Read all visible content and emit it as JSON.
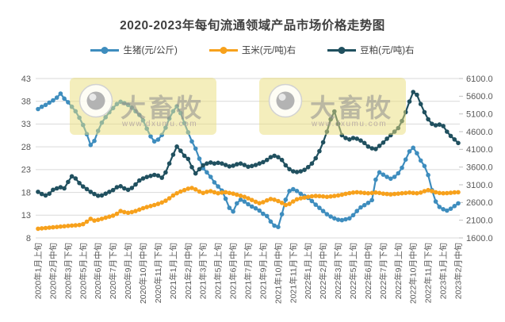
{
  "title": "2020-2023年每旬流通领域产品市场价格走势图",
  "watermark": {
    "brand": "大畜牧",
    "url": "www.dxumu.com"
  },
  "chart_data": {
    "type": "line",
    "title": "2020-2023年每旬流通领域产品市场价格走势图",
    "grid": "horizontal",
    "legend_position": "top",
    "n_points": 113,
    "label_every_n_points": 4,
    "x_tick_labels": [
      "2020年1月上旬",
      "2020年2月中旬",
      "2020年3月下旬",
      "2020年5月上旬",
      "2020年6月中旬",
      "2020年7月下旬",
      "2020年9月上旬",
      "2020年10月中旬",
      "2020年11月下旬",
      "2021年1月上旬",
      "2021年2月中旬",
      "2021年3月下旬",
      "2021年5月上旬",
      "2021年6月中旬",
      "2021年7月下旬",
      "2021年9月上旬",
      "2021年10月中旬",
      "2021年11月下旬",
      "2022年1月上旬",
      "2022年2月中旬",
      "2022年3月下旬",
      "2022年5月上旬",
      "2022年6月中旬",
      "2022年7月下旬",
      "2022年9月上旬",
      "2022年10月中旬",
      "2022年11月下旬",
      "2023年1月上旬",
      "2023年2月中旬"
    ],
    "left_axis": {
      "min": 8,
      "max": 43,
      "step": 5,
      "tick_labels": [
        "8",
        "13",
        "18",
        "23",
        "28",
        "33",
        "38",
        "43"
      ]
    },
    "right_axis": {
      "min": 1600,
      "max": 6100,
      "step": 500,
      "decimals": 1,
      "tick_labels": [
        "1600.0",
        "2100.0",
        "2600.0",
        "3100.0",
        "3600.0",
        "4100.0",
        "4600.0",
        "5100.0",
        "5600.0",
        "6100.0"
      ]
    },
    "series": [
      {
        "key": "shengzhu-pig",
        "name": "生猪(元/公斤)",
        "axis": "left",
        "color": "#3E8DBE",
        "values": [
          36.3,
          36.8,
          37.2,
          37.7,
          38.2,
          38.8,
          39.7,
          38.6,
          37.8,
          36.8,
          35.8,
          34.4,
          32.8,
          30.8,
          28.4,
          29.3,
          31.5,
          33.3,
          34.5,
          35.6,
          36.5,
          37.4,
          37.9,
          37.6,
          37.2,
          36.6,
          35.8,
          35.0,
          33.8,
          32.0,
          30.3,
          29.2,
          29.6,
          30.6,
          32.2,
          34.2,
          35.8,
          36.9,
          35.4,
          33.2,
          31.2,
          29.2,
          27.6,
          25.4,
          23.3,
          22.4,
          21.4,
          20.2,
          19.3,
          18.4,
          16.6,
          14.6,
          13.8,
          15.6,
          16.4,
          16.0,
          15.4,
          14.9,
          14.5,
          14.0,
          13.3,
          12.8,
          11.6,
          10.7,
          10.4,
          13.2,
          16.4,
          18.3,
          18.7,
          18.3,
          17.7,
          17.2,
          16.8,
          16.1,
          15.3,
          14.6,
          13.9,
          13.2,
          12.7,
          12.3,
          12.0,
          11.9,
          12.1,
          12.3,
          13.0,
          13.9,
          14.7,
          15.2,
          15.7,
          16.3,
          20.8,
          22.4,
          21.9,
          21.4,
          21.0,
          21.4,
          22.2,
          23.4,
          25.2,
          27.0,
          27.8,
          26.6,
          25.0,
          23.8,
          21.8,
          18.5,
          16.0,
          14.8,
          14.3,
          14.0,
          14.4,
          15.0,
          15.6
        ]
      },
      {
        "key": "yumi-corn",
        "name": "玉米(元/吨)右",
        "axis": "right",
        "color": "#F7A11C",
        "values": [
          1860,
          1870,
          1880,
          1890,
          1900,
          1910,
          1920,
          1930,
          1940,
          1950,
          1955,
          1965,
          1990,
          2060,
          2140,
          2090,
          2110,
          2140,
          2170,
          2200,
          2230,
          2280,
          2360,
          2330,
          2310,
          2330,
          2360,
          2400,
          2440,
          2470,
          2500,
          2530,
          2560,
          2600,
          2650,
          2720,
          2800,
          2860,
          2910,
          2950,
          2990,
          3010,
          2970,
          2910,
          2870,
          2900,
          2920,
          2890,
          2860,
          2880,
          2890,
          2870,
          2850,
          2820,
          2790,
          2760,
          2720,
          2670,
          2620,
          2580,
          2610,
          2660,
          2700,
          2680,
          2640,
          2590,
          2530,
          2560,
          2630,
          2690,
          2720,
          2740,
          2760,
          2775,
          2785,
          2780,
          2770,
          2760,
          2770,
          2785,
          2800,
          2820,
          2845,
          2865,
          2880,
          2890,
          2880,
          2870,
          2860,
          2870,
          2880,
          2870,
          2850,
          2840,
          2830,
          2840,
          2850,
          2860,
          2870,
          2880,
          2870,
          2860,
          2880,
          2920,
          2950,
          2920,
          2890,
          2870,
          2860,
          2865,
          2875,
          2885,
          2890
        ]
      },
      {
        "key": "doupo-soymeal",
        "name": "豆粕(元/吨)右",
        "axis": "right",
        "color": "#20505F",
        "values": [
          2900,
          2840,
          2800,
          2850,
          2960,
          3000,
          3030,
          3000,
          3180,
          3340,
          3280,
          3150,
          3050,
          2980,
          2900,
          2840,
          2790,
          2800,
          2850,
          2900,
          2950,
          3030,
          3060,
          3000,
          2960,
          3010,
          3110,
          3220,
          3280,
          3320,
          3350,
          3380,
          3360,
          3300,
          3450,
          3700,
          3950,
          4180,
          4060,
          3920,
          3830,
          3600,
          3420,
          3540,
          3650,
          3700,
          3730,
          3700,
          3720,
          3700,
          3660,
          3620,
          3640,
          3680,
          3700,
          3660,
          3610,
          3630,
          3660,
          3700,
          3740,
          3800,
          3880,
          3920,
          3880,
          3800,
          3650,
          3540,
          3480,
          3460,
          3480,
          3520,
          3600,
          3700,
          3850,
          4050,
          4300,
          4600,
          4950,
          5170,
          4820,
          4500,
          4420,
          4380,
          4420,
          4400,
          4350,
          4280,
          4180,
          4130,
          4110,
          4200,
          4290,
          4400,
          4500,
          4600,
          4700,
          4900,
          5150,
          5450,
          5720,
          5640,
          5380,
          5150,
          4950,
          4820,
          4780,
          4800,
          4760,
          4600,
          4480,
          4380,
          4280
        ]
      }
    ]
  },
  "colors": {
    "title_text": "#404040",
    "axis_text": "#595959",
    "gridline": "#d9d9d9",
    "pig_blue": "#3E8DBE",
    "corn_orange": "#F7A11C",
    "soymeal_navy": "#20505F",
    "watermark_fill": "rgba(233,222,122,0.5)"
  }
}
